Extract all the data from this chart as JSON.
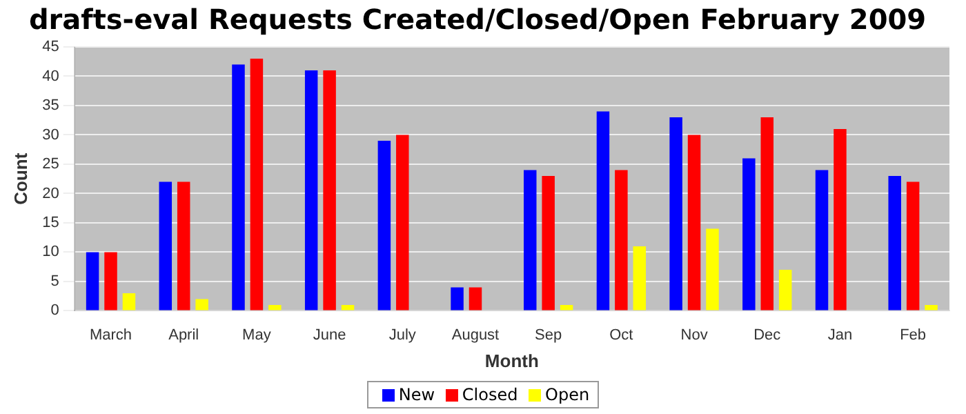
{
  "chart_data": {
    "type": "bar",
    "title": "drafts-eval Requests Created/Closed/Open February 2009",
    "xlabel": "Month",
    "ylabel": "Count",
    "categories": [
      "March",
      "April",
      "May",
      "June",
      "July",
      "August",
      "Sep",
      "Oct",
      "Nov",
      "Dec",
      "Jan",
      "Feb"
    ],
    "series": [
      {
        "name": "New",
        "color": "#0000ff",
        "values": [
          10,
          22,
          42,
          41,
          29,
          4,
          24,
          34,
          33,
          26,
          24,
          23
        ]
      },
      {
        "name": "Closed",
        "color": "#ff0000",
        "values": [
          10,
          22,
          43,
          41,
          30,
          4,
          23,
          24,
          30,
          33,
          31,
          22
        ]
      },
      {
        "name": "Open",
        "color": "#ffff00",
        "values": [
          3,
          2,
          1,
          1,
          0,
          0,
          1,
          11,
          14,
          7,
          0,
          1
        ]
      }
    ],
    "ylim": [
      0,
      45
    ],
    "yticks": [
      0,
      5,
      10,
      15,
      20,
      25,
      30,
      35,
      40,
      45
    ],
    "grid": "y",
    "legend": "bottom"
  }
}
